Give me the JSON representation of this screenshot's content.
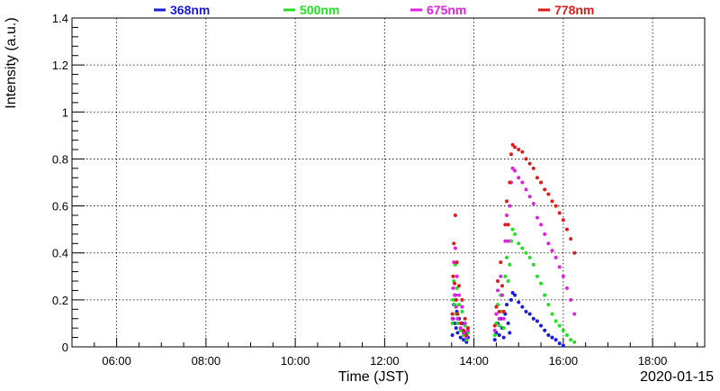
{
  "chart_data": {
    "type": "scatter",
    "title": "",
    "xlabel": "Time (JST)",
    "ylabel": "Intensity (a.u.)",
    "date_label": "2020-01-15",
    "xlim": [
      "05:00",
      "19:10"
    ],
    "ylim": [
      0,
      1.4
    ],
    "x_ticks": [
      "06:00",
      "08:00",
      "10:00",
      "12:00",
      "14:00",
      "16:00",
      "18:00"
    ],
    "y_ticks": [
      "0",
      "0.2",
      "0.4",
      "0.6",
      "0.8",
      "1",
      "1.2",
      "1.4"
    ],
    "grid": true,
    "legend_position": "top",
    "series": [
      {
        "name": "368nm",
        "color": "#1a1adb",
        "points": [
          [
            "13:31",
            0.05
          ],
          [
            "13:32",
            0.12
          ],
          [
            "13:33",
            0.18
          ],
          [
            "13:34",
            0.1
          ],
          [
            "13:35",
            0.22
          ],
          [
            "13:36",
            0.08
          ],
          [
            "13:37",
            0.15
          ],
          [
            "13:38",
            0.06
          ],
          [
            "13:40",
            0.12
          ],
          [
            "13:42",
            0.04
          ],
          [
            "13:44",
            0.1
          ],
          [
            "13:46",
            0.03
          ],
          [
            "13:48",
            0.06
          ],
          [
            "13:50",
            0.02
          ],
          [
            "13:52",
            0.04
          ],
          [
            "14:28",
            0.03
          ],
          [
            "14:30",
            0.06
          ],
          [
            "14:32",
            0.1
          ],
          [
            "14:34",
            0.05
          ],
          [
            "14:36",
            0.12
          ],
          [
            "14:38",
            0.08
          ],
          [
            "14:40",
            0.04
          ],
          [
            "14:42",
            0.14
          ],
          [
            "14:44",
            0.18
          ],
          [
            "14:46",
            0.1
          ],
          [
            "14:48",
            0.06
          ],
          [
            "14:50",
            0.2
          ],
          [
            "14:52",
            0.23
          ],
          [
            "14:55",
            0.22
          ],
          [
            "15:00",
            0.19
          ],
          [
            "15:05",
            0.17
          ],
          [
            "15:10",
            0.15
          ],
          [
            "15:15",
            0.14
          ],
          [
            "15:20",
            0.12
          ],
          [
            "15:25",
            0.11
          ],
          [
            "15:30",
            0.09
          ],
          [
            "15:35",
            0.07
          ],
          [
            "15:40",
            0.05
          ],
          [
            "15:45",
            0.04
          ],
          [
            "15:50",
            0.03
          ],
          [
            "15:55",
            0.015
          ],
          [
            "16:00",
            0.005
          ]
        ]
      },
      {
        "name": "500nm",
        "color": "#22e022",
        "points": [
          [
            "13:31",
            0.1
          ],
          [
            "13:32",
            0.2
          ],
          [
            "13:33",
            0.28
          ],
          [
            "13:34",
            0.18
          ],
          [
            "13:35",
            0.35
          ],
          [
            "13:36",
            0.14
          ],
          [
            "13:37",
            0.25
          ],
          [
            "13:38",
            0.1
          ],
          [
            "13:40",
            0.18
          ],
          [
            "13:42",
            0.07
          ],
          [
            "13:44",
            0.15
          ],
          [
            "13:46",
            0.05
          ],
          [
            "13:48",
            0.09
          ],
          [
            "13:50",
            0.03
          ],
          [
            "13:52",
            0.06
          ],
          [
            "14:28",
            0.05
          ],
          [
            "14:30",
            0.1
          ],
          [
            "14:32",
            0.18
          ],
          [
            "14:34",
            0.09
          ],
          [
            "14:36",
            0.22
          ],
          [
            "14:38",
            0.15
          ],
          [
            "14:40",
            0.08
          ],
          [
            "14:42",
            0.3
          ],
          [
            "14:44",
            0.38
          ],
          [
            "14:46",
            0.28
          ],
          [
            "14:48",
            0.35
          ],
          [
            "14:50",
            0.45
          ],
          [
            "14:52",
            0.5
          ],
          [
            "14:55",
            0.48
          ],
          [
            "15:00",
            0.44
          ],
          [
            "15:05",
            0.42
          ],
          [
            "15:10",
            0.4
          ],
          [
            "15:15",
            0.38
          ],
          [
            "15:20",
            0.35
          ],
          [
            "15:25",
            0.3
          ],
          [
            "15:30",
            0.27
          ],
          [
            "15:35",
            0.22
          ],
          [
            "15:40",
            0.18
          ],
          [
            "15:45",
            0.14
          ],
          [
            "15:50",
            0.11
          ],
          [
            "15:55",
            0.09
          ],
          [
            "16:00",
            0.07
          ],
          [
            "16:05",
            0.05
          ],
          [
            "16:10",
            0.03
          ],
          [
            "16:15",
            0.02
          ]
        ]
      },
      {
        "name": "675nm",
        "color": "#e022e0",
        "points": [
          [
            "13:31",
            0.12
          ],
          [
            "13:32",
            0.25
          ],
          [
            "13:33",
            0.36
          ],
          [
            "13:34",
            0.22
          ],
          [
            "13:35",
            0.42
          ],
          [
            "13:36",
            0.17
          ],
          [
            "13:37",
            0.3
          ],
          [
            "13:38",
            0.12
          ],
          [
            "13:40",
            0.22
          ],
          [
            "13:42",
            0.08
          ],
          [
            "13:44",
            0.17
          ],
          [
            "13:46",
            0.06
          ],
          [
            "13:48",
            0.1
          ],
          [
            "13:50",
            0.04
          ],
          [
            "13:52",
            0.07
          ],
          [
            "14:28",
            0.07
          ],
          [
            "14:30",
            0.14
          ],
          [
            "14:32",
            0.24
          ],
          [
            "14:34",
            0.12
          ],
          [
            "14:36",
            0.3
          ],
          [
            "14:38",
            0.22
          ],
          [
            "14:40",
            0.12
          ],
          [
            "14:42",
            0.45
          ],
          [
            "14:44",
            0.56
          ],
          [
            "14:46",
            0.45
          ],
          [
            "14:48",
            0.6
          ],
          [
            "14:50",
            0.7
          ],
          [
            "14:52",
            0.76
          ],
          [
            "14:55",
            0.75
          ],
          [
            "15:00",
            0.72
          ],
          [
            "15:05",
            0.7
          ],
          [
            "15:10",
            0.67
          ],
          [
            "15:15",
            0.64
          ],
          [
            "15:20",
            0.61
          ],
          [
            "15:25",
            0.55
          ],
          [
            "15:30",
            0.52
          ],
          [
            "15:35",
            0.48
          ],
          [
            "15:40",
            0.44
          ],
          [
            "15:45",
            0.41
          ],
          [
            "15:50",
            0.38
          ],
          [
            "15:55",
            0.34
          ],
          [
            "16:00",
            0.3
          ],
          [
            "16:05",
            0.25
          ],
          [
            "16:10",
            0.2
          ],
          [
            "16:15",
            0.14
          ]
        ]
      },
      {
        "name": "778nm",
        "color": "#e01a1a",
        "points": [
          [
            "13:31",
            0.14
          ],
          [
            "13:32",
            0.3
          ],
          [
            "13:33",
            0.44
          ],
          [
            "13:34",
            0.27
          ],
          [
            "13:35",
            0.56
          ],
          [
            "13:36",
            0.2
          ],
          [
            "13:37",
            0.36
          ],
          [
            "13:38",
            0.14
          ],
          [
            "13:40",
            0.26
          ],
          [
            "13:42",
            0.1
          ],
          [
            "13:44",
            0.2
          ],
          [
            "13:46",
            0.07
          ],
          [
            "13:48",
            0.12
          ],
          [
            "13:50",
            0.05
          ],
          [
            "13:52",
            0.08
          ],
          [
            "14:28",
            0.09
          ],
          [
            "14:30",
            0.17
          ],
          [
            "14:32",
            0.28
          ],
          [
            "14:34",
            0.15
          ],
          [
            "14:36",
            0.36
          ],
          [
            "14:38",
            0.26
          ],
          [
            "14:40",
            0.15
          ],
          [
            "14:42",
            0.52
          ],
          [
            "14:44",
            0.62
          ],
          [
            "14:46",
            0.52
          ],
          [
            "14:48",
            0.7
          ],
          [
            "14:50",
            0.82
          ],
          [
            "14:52",
            0.86
          ],
          [
            "14:55",
            0.85
          ],
          [
            "15:00",
            0.84
          ],
          [
            "15:05",
            0.83
          ],
          [
            "15:10",
            0.8
          ],
          [
            "15:15",
            0.78
          ],
          [
            "15:20",
            0.76
          ],
          [
            "15:25",
            0.72
          ],
          [
            "15:30",
            0.7
          ],
          [
            "15:35",
            0.67
          ],
          [
            "15:40",
            0.65
          ],
          [
            "15:45",
            0.62
          ],
          [
            "15:50",
            0.6
          ],
          [
            "15:55",
            0.57
          ],
          [
            "16:00",
            0.54
          ],
          [
            "16:05",
            0.5
          ],
          [
            "16:10",
            0.46
          ],
          [
            "16:15",
            0.4
          ]
        ]
      }
    ]
  }
}
